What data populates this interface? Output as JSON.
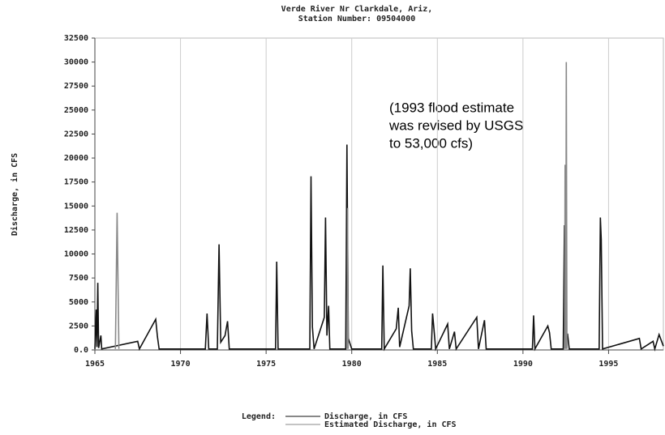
{
  "chart_data": {
    "type": "line",
    "title": "Verde River Nr Clarkdale, Ariz,",
    "subtitle": "Station Number: 09504000",
    "y_label": "Discharge, in CFS",
    "annotation": [
      "(1993 flood estimate",
      "was revised by USGS",
      "to 53,000 cfs)"
    ],
    "legend_title": "Legend:",
    "xlim": [
      1965,
      1998.2
    ],
    "xticks": [
      1965,
      1970,
      1975,
      1980,
      1985,
      1990,
      1995
    ],
    "ylim": [
      0,
      32500
    ],
    "yticks": [
      {
        "value": 0,
        "label": "0.0"
      },
      2500,
      5000,
      7500,
      10000,
      12500,
      15000,
      17500,
      20000,
      22500,
      25000,
      27500,
      30000,
      32500
    ],
    "grid": true,
    "series": [
      {
        "name": "Discharge, in CFS",
        "color": "#111111",
        "x": [
          1965.0,
          1965.08,
          1965.12,
          1965.17,
          1965.22,
          1965.35,
          1965.4,
          1967.5,
          1967.6,
          1968.55,
          1968.65,
          1968.75,
          1971.45,
          1971.55,
          1971.65,
          1972.15,
          1972.25,
          1972.35,
          1972.6,
          1972.75,
          1972.85,
          1975.55,
          1975.62,
          1975.7,
          1977.55,
          1977.62,
          1977.7,
          1977.8,
          1978.4,
          1978.47,
          1978.55,
          1978.65,
          1978.72,
          1979.65,
          1979.72,
          1979.8,
          1980.0,
          1981.75,
          1981.82,
          1981.9,
          1982.6,
          1982.72,
          1982.8,
          1983.35,
          1983.42,
          1983.5,
          1983.6,
          1984.65,
          1984.72,
          1984.8,
          1984.9,
          1985.6,
          1985.7,
          1986.0,
          1986.1,
          1987.3,
          1987.4,
          1987.75,
          1987.85,
          1990.55,
          1990.62,
          1990.7,
          1991.45,
          1991.55,
          1991.65,
          1992.35,
          1992.42,
          1992.5,
          1992.6,
          1992.7,
          1994.45,
          1994.52,
          1994.57,
          1994.65,
          1996.8,
          1996.9,
          1997.6,
          1997.7,
          1997.95,
          1998.2
        ],
        "values": [
          100,
          4200,
          300,
          7000,
          200,
          1500,
          100,
          900,
          100,
          3200,
          1400,
          100,
          100,
          3800,
          100,
          100,
          11000,
          800,
          1500,
          3000,
          100,
          100,
          9200,
          100,
          100,
          18100,
          2400,
          100,
          3400,
          13800,
          1500,
          4600,
          100,
          100,
          21400,
          1200,
          100,
          100,
          8800,
          100,
          2200,
          4400,
          300,
          4600,
          8500,
          2000,
          100,
          100,
          3800,
          2200,
          100,
          2700,
          100,
          1900,
          100,
          3400,
          100,
          3100,
          100,
          100,
          3600,
          100,
          2500,
          1800,
          100,
          100,
          13000,
          300,
          1700,
          100,
          100,
          13800,
          11500,
          100,
          1200,
          100,
          900,
          100,
          1600,
          400
        ]
      },
      {
        "name": "Estimated Discharge, in CFS",
        "color": "#888888",
        "x": [
          1966.2,
          1966.3,
          1966.4,
          null,
          1979.73,
          1979.76,
          1979.79,
          null,
          1992.43,
          1992.46,
          1992.5,
          1992.53,
          1992.57
        ],
        "values": [
          100,
          14300,
          100,
          null,
          100,
          14800,
          100,
          null,
          100,
          19300,
          100,
          30000,
          100
        ]
      }
    ]
  }
}
